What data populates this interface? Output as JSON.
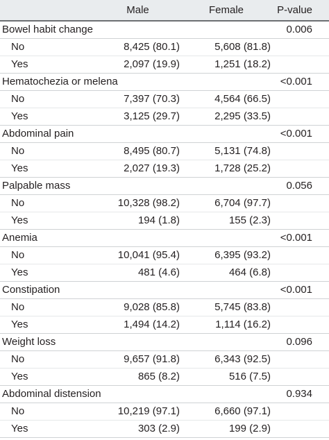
{
  "header": {
    "label": "",
    "male": "Male",
    "female": "Female",
    "pvalue": "P-value"
  },
  "groups": [
    {
      "name": "Bowel habit change",
      "p": "0.006",
      "rows": [
        {
          "label": "No",
          "male": "8,425 (80.1)",
          "female": "5,608 (81.8)"
        },
        {
          "label": "Yes",
          "male": "2,097 (19.9)",
          "female": "1,251 (18.2)"
        }
      ]
    },
    {
      "name": "Hematochezia or melena",
      "p": "<0.001",
      "rows": [
        {
          "label": "No",
          "male": "7,397 (70.3)",
          "female": "4,564 (66.5)"
        },
        {
          "label": "Yes",
          "male": "3,125 (29.7)",
          "female": "2,295 (33.5)"
        }
      ]
    },
    {
      "name": "Abdominal pain",
      "p": "<0.001",
      "rows": [
        {
          "label": "No",
          "male": "8,495 (80.7)",
          "female": "5,131 (74.8)"
        },
        {
          "label": "Yes",
          "male": "2,027 (19.3)",
          "female": "1,728 (25.2)"
        }
      ]
    },
    {
      "name": "Palpable mass",
      "p": "0.056",
      "rows": [
        {
          "label": "No",
          "male": "10,328 (98.2)",
          "female": "6,704 (97.7)"
        },
        {
          "label": "Yes",
          "male": "194 (1.8)",
          "female": "155 (2.3)"
        }
      ]
    },
    {
      "name": "Anemia",
      "p": "<0.001",
      "rows": [
        {
          "label": "No",
          "male": "10,041 (95.4)",
          "female": "6,395 (93.2)"
        },
        {
          "label": "Yes",
          "male": "481 (4.6)",
          "female": "464 (6.8)"
        }
      ]
    },
    {
      "name": "Constipation",
      "p": "<0.001",
      "rows": [
        {
          "label": "No",
          "male": "9,028 (85.8)",
          "female": "5,745 (83.8)"
        },
        {
          "label": "Yes",
          "male": "1,494 (14.2)",
          "female": "1,114 (16.2)"
        }
      ]
    },
    {
      "name": "Weight loss",
      "p": "0.096",
      "rows": [
        {
          "label": "No",
          "male": "9,657 (91.8)",
          "female": "6,343 (92.5)"
        },
        {
          "label": "Yes",
          "male": "865 (8.2)",
          "female": "516 (7.5)"
        }
      ]
    },
    {
      "name": "Abdominal distension",
      "p": "0.934",
      "rows": [
        {
          "label": "No",
          "male": "10,219 (97.1)",
          "female": "6,660 (97.1)"
        },
        {
          "label": "Yes",
          "male": "303 (2.9)",
          "female": "199 (2.9)"
        }
      ]
    }
  ]
}
